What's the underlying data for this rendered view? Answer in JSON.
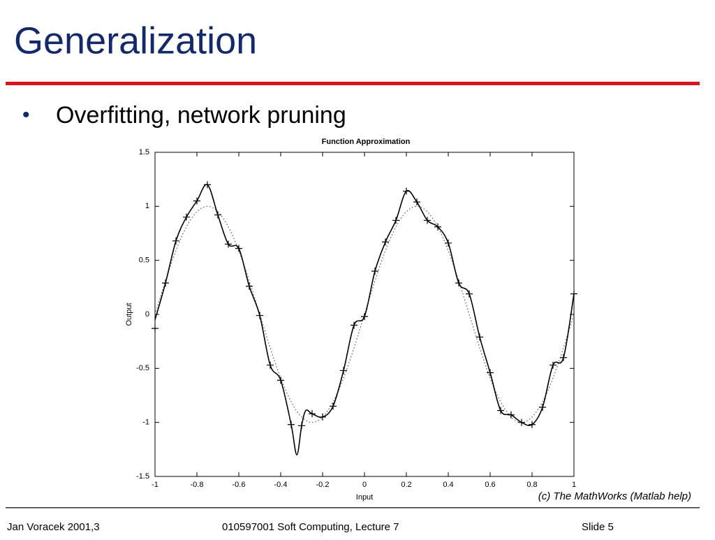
{
  "title": "Generalization",
  "bullets": [
    "Overfitting, network pruning"
  ],
  "caption": "(c) The MathWorks (Matlab help)",
  "footer": {
    "left": "Jan Voracek 2001,3",
    "center": "010597001 Soft Computing, Lecture 7",
    "right": "Slide 5"
  },
  "chart_data": {
    "type": "line",
    "title": "Function Approximation",
    "x_label": "Input",
    "y_label": "Output",
    "xlim": [
      -1,
      1
    ],
    "ylim": [
      -1.5,
      1.5
    ],
    "xticks": [
      -1,
      -0.8,
      -0.6,
      -0.4,
      -0.2,
      0,
      0.2,
      0.4,
      0.6,
      0.8,
      1
    ],
    "yticks": [
      -1.5,
      -1,
      -0.5,
      0,
      0.5,
      1,
      1.5
    ],
    "series": [
      {
        "style": "dotted",
        "color": "#555555",
        "x": [
          -1,
          -0.95,
          -0.9,
          -0.85,
          -0.8,
          -0.75,
          -0.7,
          -0.65,
          -0.6,
          -0.55,
          -0.5,
          -0.45,
          -0.4,
          -0.35,
          -0.3,
          -0.25,
          -0.2,
          -0.15,
          -0.1,
          -0.05,
          0,
          0.05,
          0.1,
          0.15,
          0.2,
          0.25,
          0.3,
          0.35,
          0.4,
          0.45,
          0.5,
          0.55,
          0.6,
          0.65,
          0.7,
          0.75,
          0.8,
          0.85,
          0.9,
          0.95,
          1
        ],
        "values": [
          0,
          0.31,
          0.59,
          0.81,
          0.95,
          1,
          0.95,
          0.81,
          0.59,
          0.31,
          0,
          -0.31,
          -0.59,
          -0.81,
          -0.95,
          -1,
          -0.95,
          -0.81,
          -0.59,
          -0.31,
          0,
          0.31,
          0.59,
          0.81,
          0.95,
          1,
          0.95,
          0.81,
          0.59,
          0.31,
          0,
          -0.31,
          -0.59,
          -0.81,
          -0.95,
          -1,
          -0.95,
          -0.81,
          -0.59,
          -0.31,
          0
        ]
      },
      {
        "style": "solid",
        "color": "#000000",
        "x": [
          -1,
          -0.95,
          -0.9,
          -0.85,
          -0.8,
          -0.75,
          -0.7,
          -0.65,
          -0.6,
          -0.55,
          -0.5,
          -0.45,
          -0.4,
          -0.35,
          -0.323,
          -0.3,
          -0.28,
          -0.25,
          -0.2,
          -0.15,
          -0.1,
          -0.05,
          0,
          0.05,
          0.1,
          0.15,
          0.2,
          0.25,
          0.3,
          0.35,
          0.4,
          0.45,
          0.5,
          0.55,
          0.6,
          0.65,
          0.7,
          0.75,
          0.8,
          0.85,
          0.9,
          0.95,
          1
        ],
        "values": [
          -0.05,
          0.29,
          0.68,
          0.9,
          1.05,
          1.2,
          0.92,
          0.65,
          0.61,
          0.26,
          -0.01,
          -0.47,
          -0.61,
          -1.02,
          -1.3,
          -1.03,
          -0.89,
          -0.92,
          -0.95,
          -0.85,
          -0.52,
          -0.1,
          -0.02,
          0.4,
          0.67,
          0.87,
          1.14,
          1.04,
          0.87,
          0.81,
          0.66,
          0.29,
          0.19,
          -0.21,
          -0.54,
          -0.89,
          -0.93,
          -1,
          -1.02,
          -0.86,
          -0.47,
          -0.4,
          0.19
        ]
      },
      {
        "style": "markers",
        "color": "#000000",
        "x": [
          -1,
          -0.95,
          -0.9,
          -0.85,
          -0.8,
          -0.75,
          -0.7,
          -0.65,
          -0.6,
          -0.55,
          -0.5,
          -0.45,
          -0.4,
          -0.35,
          -0.3,
          -0.25,
          -0.2,
          -0.15,
          -0.1,
          -0.05,
          0,
          0.05,
          0.1,
          0.15,
          0.2,
          0.25,
          0.3,
          0.35,
          0.4,
          0.45,
          0.5,
          0.55,
          0.6,
          0.65,
          0.7,
          0.75,
          0.8,
          0.85,
          0.9,
          0.95,
          1
        ],
        "values": [
          -0.13,
          0.29,
          0.68,
          0.9,
          1.05,
          1.2,
          0.92,
          0.65,
          0.61,
          0.26,
          -0.01,
          -0.47,
          -0.61,
          -1.02,
          -1.03,
          -0.92,
          -0.95,
          -0.85,
          -0.52,
          -0.1,
          -0.02,
          0.4,
          0.67,
          0.87,
          1.14,
          1.04,
          0.87,
          0.81,
          0.66,
          0.29,
          0.19,
          -0.21,
          -0.54,
          -0.89,
          -0.93,
          -1,
          -1.02,
          -0.86,
          -0.47,
          -0.4,
          0.19
        ]
      }
    ]
  }
}
